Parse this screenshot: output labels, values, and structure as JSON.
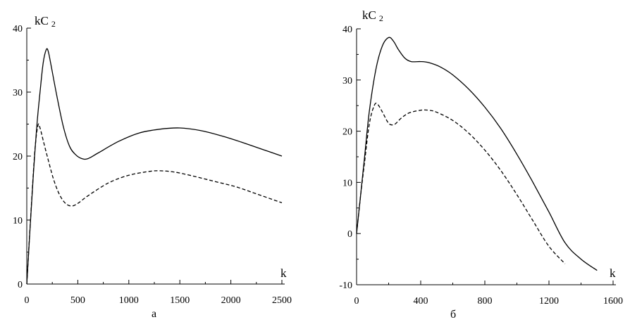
{
  "chart_data": [
    {
      "type": "line",
      "panel_label": "а",
      "xlabel": "k",
      "ylabel": {
        "main": "kC",
        "sub": "2"
      },
      "xlim": [
        0,
        2500
      ],
      "ylim": [
        0,
        40
      ],
      "xticks": [
        0,
        500,
        1000,
        1500,
        2000,
        2500
      ],
      "xtick_labels": [
        "0",
        "500",
        "1000",
        "1500",
        "2000",
        "2500"
      ],
      "yticks": [
        0,
        10,
        20,
        30,
        40
      ],
      "ytick_labels": [
        "0",
        "10",
        "20",
        "30",
        "40"
      ],
      "grid": false,
      "series": [
        {
          "style": "solid",
          "points": [
            [
              0,
              0
            ],
            [
              60,
              16
            ],
            [
              100,
              25
            ],
            [
              130,
              30
            ],
            [
              160,
              34.5
            ],
            [
              190,
              36.6
            ],
            [
              210,
              36.4
            ],
            [
              240,
              34
            ],
            [
              300,
              29
            ],
            [
              360,
              24.5
            ],
            [
              420,
              21.5
            ],
            [
              480,
              20.2
            ],
            [
              540,
              19.6
            ],
            [
              600,
              19.6
            ],
            [
              700,
              20.5
            ],
            [
              900,
              22.3
            ],
            [
              1100,
              23.6
            ],
            [
              1300,
              24.2
            ],
            [
              1500,
              24.4
            ],
            [
              1700,
              24
            ],
            [
              1900,
              23.2
            ],
            [
              2100,
              22.2
            ],
            [
              2300,
              21.1
            ],
            [
              2500,
              20
            ]
          ]
        },
        {
          "style": "dashed",
          "points": [
            [
              0,
              0
            ],
            [
              40,
              11
            ],
            [
              80,
              21
            ],
            [
              110,
              24.8
            ],
            [
              130,
              24.4
            ],
            [
              160,
              22.5
            ],
            [
              200,
              20
            ],
            [
              260,
              16.5
            ],
            [
              320,
              14
            ],
            [
              380,
              12.6
            ],
            [
              440,
              12.2
            ],
            [
              500,
              12.6
            ],
            [
              600,
              13.8
            ],
            [
              800,
              15.8
            ],
            [
              1000,
              17
            ],
            [
              1200,
              17.6
            ],
            [
              1300,
              17.7
            ],
            [
              1450,
              17.5
            ],
            [
              1650,
              16.8
            ],
            [
              1850,
              16
            ],
            [
              2050,
              15.2
            ],
            [
              2250,
              14.1
            ],
            [
              2500,
              12.7
            ]
          ]
        }
      ]
    },
    {
      "type": "line",
      "panel_label": "б",
      "xlabel": "k",
      "ylabel": {
        "main": "kC",
        "sub": "2"
      },
      "xlim": [
        0,
        1600
      ],
      "ylim": [
        -10,
        40
      ],
      "xticks": [
        0,
        400,
        800,
        1200,
        1600
      ],
      "xtick_labels": [
        "0",
        "400",
        "800",
        "1200",
        "1600"
      ],
      "yticks": [
        -10,
        0,
        10,
        20,
        30,
        40
      ],
      "ytick_labels": [
        "-10",
        "0",
        "10",
        "20",
        "30",
        "40"
      ],
      "grid": false,
      "series": [
        {
          "style": "solid",
          "points": [
            [
              0,
              0
            ],
            [
              20,
              6
            ],
            [
              50,
              15
            ],
            [
              80,
              24
            ],
            [
              120,
              32
            ],
            [
              160,
              36.6
            ],
            [
              200,
              38.3
            ],
            [
              230,
              37.6
            ],
            [
              260,
              36
            ],
            [
              300,
              34.3
            ],
            [
              340,
              33.6
            ],
            [
              400,
              33.6
            ],
            [
              450,
              33.4
            ],
            [
              520,
              32.6
            ],
            [
              600,
              31
            ],
            [
              700,
              28.2
            ],
            [
              800,
              24.7
            ],
            [
              900,
              20.5
            ],
            [
              1000,
              15.5
            ],
            [
              1100,
              10
            ],
            [
              1200,
              4.2
            ],
            [
              1300,
              -1.8
            ],
            [
              1400,
              -5
            ],
            [
              1500,
              -7.2
            ]
          ]
        },
        {
          "style": "dashed",
          "points": [
            [
              0,
              0
            ],
            [
              20,
              6
            ],
            [
              50,
              14
            ],
            [
              80,
              21.5
            ],
            [
              110,
              25
            ],
            [
              130,
              25.3
            ],
            [
              160,
              23.8
            ],
            [
              190,
              22
            ],
            [
              210,
              21.3
            ],
            [
              240,
              21.4
            ],
            [
              280,
              22.6
            ],
            [
              330,
              23.6
            ],
            [
              400,
              24.1
            ],
            [
              450,
              24.1
            ],
            [
              500,
              23.7
            ],
            [
              600,
              22.1
            ],
            [
              700,
              19.6
            ],
            [
              800,
              16.3
            ],
            [
              900,
              12.3
            ],
            [
              1000,
              7.6
            ],
            [
              1100,
              2.5
            ],
            [
              1200,
              -2.5
            ],
            [
              1300,
              -5.9
            ]
          ]
        }
      ]
    }
  ]
}
